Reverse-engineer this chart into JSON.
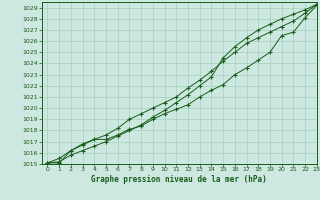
{
  "bg_color": "#cce8e0",
  "grid_color": "#99ccbb",
  "line_color": "#1a5c1a",
  "xlim": [
    -0.5,
    23
  ],
  "ylim": [
    1015,
    1029.5
  ],
  "yticks": [
    1015,
    1016,
    1017,
    1018,
    1019,
    1020,
    1021,
    1022,
    1023,
    1024,
    1025,
    1026,
    1027,
    1028,
    1029
  ],
  "xticks": [
    0,
    1,
    2,
    3,
    4,
    5,
    6,
    7,
    8,
    9,
    10,
    11,
    12,
    13,
    14,
    15,
    16,
    17,
    18,
    19,
    20,
    21,
    22,
    23
  ],
  "xlabel": "Graphe pression niveau de la mer (hPa)",
  "line1": [
    1015.1,
    1015.1,
    1016.2,
    1016.7,
    1017.2,
    1017.2,
    1017.6,
    1018.1,
    1018.4,
    1019.0,
    1019.5,
    1019.9,
    1020.3,
    1021.0,
    1021.6,
    1022.1,
    1023.0,
    1023.6,
    1024.3,
    1025.0,
    1026.5,
    1026.8,
    1028.1,
    1029.2
  ],
  "line2": [
    1015.1,
    1015.5,
    1016.2,
    1016.8,
    1017.2,
    1017.6,
    1018.2,
    1019.0,
    1019.5,
    1020.0,
    1020.5,
    1021.0,
    1021.8,
    1022.5,
    1023.3,
    1024.2,
    1025.0,
    1025.8,
    1026.3,
    1026.8,
    1027.3,
    1027.8,
    1028.5,
    1029.3
  ],
  "line3": [
    1015.1,
    1015.2,
    1015.8,
    1016.2,
    1016.6,
    1017.0,
    1017.5,
    1018.0,
    1018.5,
    1019.2,
    1019.8,
    1020.5,
    1021.2,
    1022.0,
    1022.8,
    1024.5,
    1025.5,
    1026.3,
    1027.0,
    1027.5,
    1028.0,
    1028.4,
    1028.8,
    1029.3
  ]
}
